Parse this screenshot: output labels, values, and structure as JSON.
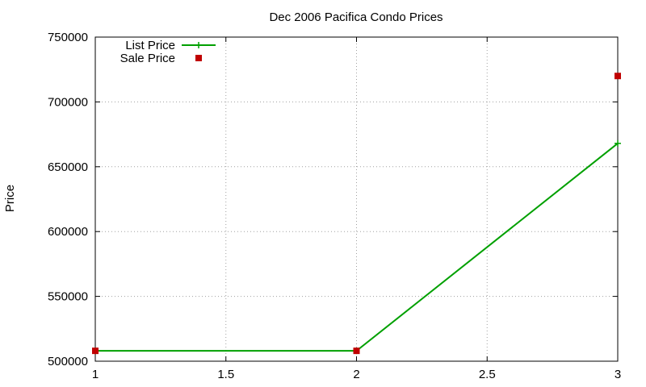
{
  "chart_data": {
    "type": "line",
    "title": "Dec 2006 Pacifica Condo Prices",
    "xlabel": "",
    "ylabel": "Price",
    "xlim": [
      1,
      3
    ],
    "ylim": [
      500000,
      750000
    ],
    "xticks": [
      1,
      1.5,
      2,
      2.5,
      3
    ],
    "xtick_labels": [
      "1",
      "1.5",
      "2",
      "2.5",
      "3"
    ],
    "yticks": [
      500000,
      550000,
      600000,
      650000,
      700000,
      750000
    ],
    "ytick_labels": [
      "500000",
      "550000",
      "600000",
      "650000",
      "700000",
      "750000"
    ],
    "grid": true,
    "legend_position": "top-left",
    "series": [
      {
        "name": "List Price",
        "style": "line+cross",
        "color": "#00a000",
        "x": [
          1,
          2,
          3
        ],
        "y": [
          508000,
          508000,
          668000
        ]
      },
      {
        "name": "Sale Price",
        "style": "square points",
        "color": "#c00000",
        "x": [
          1,
          2,
          3
        ],
        "y": [
          508000,
          508000,
          720000
        ]
      }
    ]
  }
}
